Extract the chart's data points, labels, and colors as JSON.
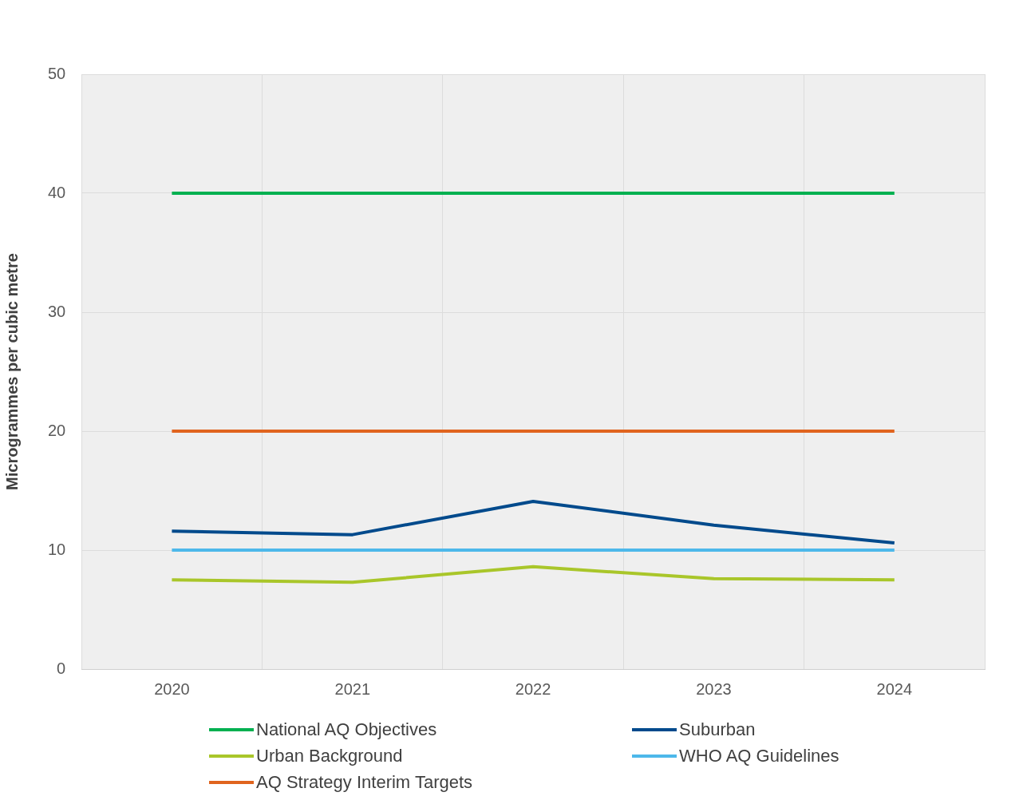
{
  "chart_data": {
    "type": "line",
    "ylabel": "Microgrammes per cubic metre",
    "categories": [
      "2020",
      "2021",
      "2022",
      "2023",
      "2024"
    ],
    "series": [
      {
        "name": "National AQ Objectives",
        "color": "#00b050",
        "values": [
          40,
          40,
          40,
          40,
          40
        ]
      },
      {
        "name": "Suburban",
        "color": "#004a8c",
        "values": [
          11.6,
          11.3,
          14.1,
          12.1,
          10.6
        ]
      },
      {
        "name": "Urban Background",
        "color": "#a9c62a",
        "values": [
          7.5,
          7.3,
          8.6,
          7.6,
          7.5
        ]
      },
      {
        "name": "WHO AQ Guidelines",
        "color": "#4db8ea",
        "values": [
          10,
          10,
          10,
          10,
          10
        ]
      },
      {
        "name": "AQ Strategy Interim Targets",
        "color": "#e0641e",
        "values": [
          20,
          20,
          20,
          20,
          20
        ]
      }
    ],
    "ylim": [
      0,
      50
    ],
    "yticks": [
      0,
      10,
      20,
      30,
      40,
      50
    ],
    "grid": true,
    "legend": "bottom",
    "marker": "none",
    "line_style": "solid"
  }
}
